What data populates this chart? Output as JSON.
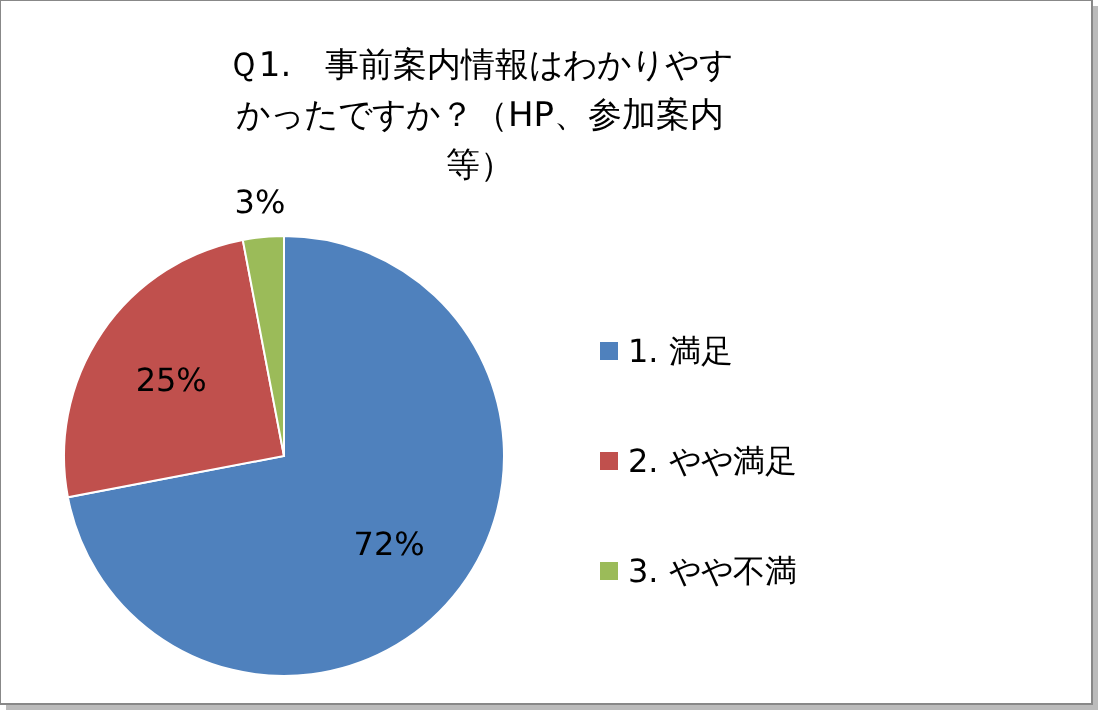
{
  "chart_data": {
    "type": "pie",
    "title": "Ｑ1.　事前案内情報はわかりやすかったですか？（HP、参加案内等）",
    "categories": [
      "1. 満足",
      "2. やや満足",
      "3. やや不満"
    ],
    "values": [
      72,
      25,
      3
    ],
    "colors": [
      "#4f81bd",
      "#c0504d",
      "#9bbb59"
    ],
    "value_labels": [
      "72%",
      "25%",
      "3%"
    ],
    "legend": "right"
  }
}
